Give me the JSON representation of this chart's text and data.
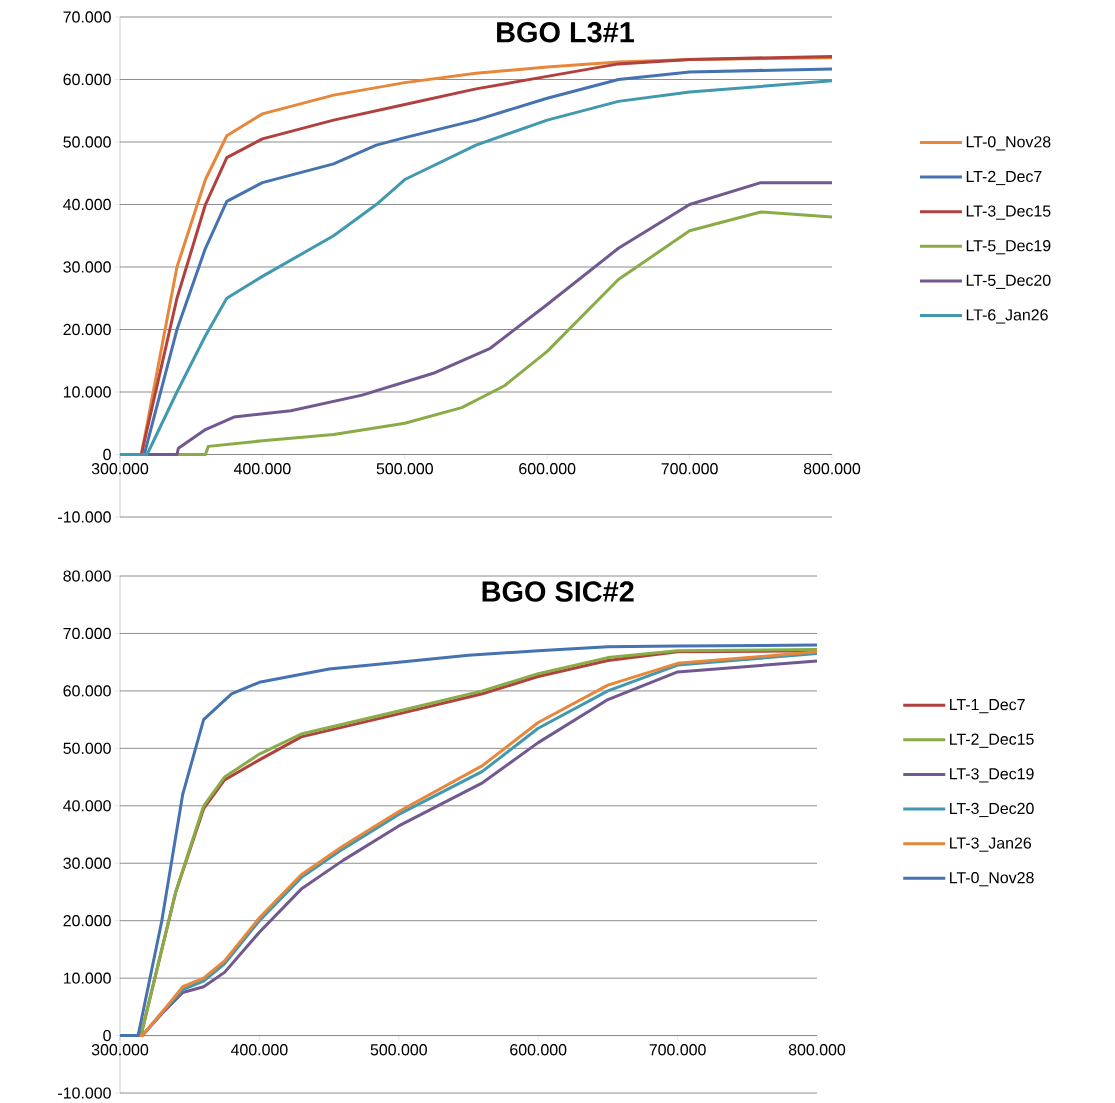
{
  "chart_data": [
    {
      "type": "line",
      "title": "BGO L3#1",
      "xlim": [
        300000,
        800000
      ],
      "ylim": [
        -10000,
        70000
      ],
      "xticks": [
        {
          "value": 300000,
          "label": "300.000"
        },
        {
          "value": 400000,
          "label": "400.000"
        },
        {
          "value": 500000,
          "label": "500.000"
        },
        {
          "value": 600000,
          "label": "600.000"
        },
        {
          "value": 700000,
          "label": "700.000"
        },
        {
          "value": 800000,
          "label": "800.000"
        }
      ],
      "yticks": [
        {
          "value": -10000,
          "label": "-10.000"
        },
        0,
        {
          "value": 10000,
          "label": "10.000"
        },
        {
          "value": 20000,
          "label": "20.000"
        },
        {
          "value": 30000,
          "label": "30.000"
        },
        {
          "value": 40000,
          "label": "40.000"
        },
        {
          "value": 50000,
          "label": "50.000"
        },
        {
          "value": 60000,
          "label": "60.000"
        },
        {
          "value": 70000,
          "label": "70.000"
        }
      ],
      "grid": "y",
      "legend": "right",
      "line_style": "solid",
      "series": [
        {
          "name": "LT-0_Nov28",
          "color": "#e8873a",
          "x": [
            300000,
            315000,
            340000,
            360000,
            375000,
            400000,
            450000,
            500000,
            550000,
            600000,
            650000,
            700000,
            800000
          ],
          "values": [
            0,
            0,
            30000,
            44000,
            51000,
            54500,
            57500,
            59500,
            61000,
            62000,
            62800,
            63200,
            63500
          ]
        },
        {
          "name": "LT-2_Dec7",
          "color": "#4572b0",
          "x": [
            300000,
            317000,
            340000,
            360000,
            375000,
            400000,
            450000,
            480000,
            500000,
            550000,
            600000,
            650000,
            700000,
            800000
          ],
          "values": [
            0,
            0,
            20000,
            33000,
            40500,
            43500,
            46500,
            49500,
            50700,
            53500,
            57000,
            60000,
            61200,
            61700
          ]
        },
        {
          "name": "LT-3_Dec15",
          "color": "#b0413e",
          "x": [
            300000,
            315000,
            340000,
            360000,
            375000,
            400000,
            450000,
            500000,
            550000,
            600000,
            650000,
            700000,
            800000
          ],
          "values": [
            0,
            0,
            25000,
            40000,
            47500,
            50500,
            53500,
            56000,
            58500,
            60500,
            62500,
            63200,
            63700
          ]
        },
        {
          "name": "LT-5_Dec19",
          "color": "#8aac46",
          "x": [
            300000,
            360000,
            362000,
            400000,
            450000,
            500000,
            540000,
            570000,
            600000,
            650000,
            700000,
            750000,
            800000
          ],
          "values": [
            0,
            0,
            1300,
            2200,
            3200,
            5000,
            7500,
            11000,
            16500,
            28000,
            35800,
            38800,
            38000
          ]
        },
        {
          "name": "LT-5_Dec20",
          "color": "#71588f",
          "x": [
            300000,
            340000,
            341000,
            360000,
            380000,
            420000,
            470000,
            520000,
            560000,
            600000,
            650000,
            700000,
            750000,
            800000
          ],
          "values": [
            0,
            0,
            1000,
            4000,
            6000,
            7000,
            9500,
            13000,
            17000,
            24000,
            33000,
            40000,
            43500,
            43500
          ]
        },
        {
          "name": "LT-6_Jan26",
          "color": "#4198af",
          "x": [
            300000,
            319000,
            340000,
            360000,
            375000,
            400000,
            450000,
            480000,
            500000,
            550000,
            600000,
            650000,
            700000,
            800000
          ],
          "values": [
            0,
            0,
            10000,
            19000,
            25000,
            28500,
            35000,
            40000,
            44000,
            49500,
            53500,
            56500,
            58000,
            59800
          ]
        }
      ]
    },
    {
      "type": "line",
      "title": "BGO SIC#2",
      "xlim": [
        300000,
        800000
      ],
      "ylim": [
        -10000,
        80000
      ],
      "xticks": [
        {
          "value": 300000,
          "label": "300.000"
        },
        {
          "value": 400000,
          "label": "400.000"
        },
        {
          "value": 500000,
          "label": "500.000"
        },
        {
          "value": 600000,
          "label": "600.000"
        },
        {
          "value": 700000,
          "label": "700.000"
        },
        {
          "value": 800000,
          "label": "800.000"
        }
      ],
      "yticks": [
        {
          "value": -10000,
          "label": "-10.000"
        },
        0,
        {
          "value": 10000,
          "label": "10.000"
        },
        {
          "value": 20000,
          "label": "20.000"
        },
        {
          "value": 30000,
          "label": "30.000"
        },
        {
          "value": 40000,
          "label": "40.000"
        },
        {
          "value": 50000,
          "label": "50.000"
        },
        {
          "value": 60000,
          "label": "60.000"
        },
        {
          "value": 70000,
          "label": "70.000"
        },
        {
          "value": 80000,
          "label": "80.000"
        }
      ],
      "grid": "y",
      "legend": "right",
      "line_style": "solid",
      "series": [
        {
          "name": "LT-1_Dec7",
          "color": "#b0413e",
          "x": [
            300000,
            315000,
            340000,
            360000,
            375000,
            400000,
            430000,
            500000,
            560000,
            600000,
            650000,
            700000,
            800000
          ],
          "values": [
            0,
            0,
            25000,
            39500,
            44500,
            48000,
            52000,
            56000,
            59500,
            62500,
            65300,
            66800,
            67000
          ]
        },
        {
          "name": "LT-2_Dec15",
          "color": "#8aac46",
          "x": [
            300000,
            315000,
            340000,
            360000,
            375000,
            400000,
            430000,
            500000,
            560000,
            600000,
            650000,
            700000,
            800000
          ],
          "values": [
            0,
            0,
            25000,
            40000,
            45000,
            49000,
            52500,
            56500,
            60000,
            63000,
            65800,
            67000,
            67200
          ]
        },
        {
          "name": "LT-3_Dec19",
          "color": "#71588f",
          "x": [
            300000,
            316000,
            330000,
            345000,
            360000,
            375000,
            400000,
            430000,
            460000,
            500000,
            560000,
            600000,
            650000,
            700000,
            800000
          ],
          "values": [
            0,
            0,
            3800,
            7500,
            8500,
            11000,
            18000,
            25500,
            30500,
            36500,
            44000,
            51000,
            58500,
            63300,
            65200
          ]
        },
        {
          "name": "LT-3_Dec20",
          "color": "#4198af",
          "x": [
            300000,
            316000,
            330000,
            345000,
            360000,
            375000,
            400000,
            430000,
            460000,
            500000,
            560000,
            600000,
            650000,
            700000,
            800000
          ],
          "values": [
            0,
            0,
            4000,
            8000,
            9500,
            12500,
            20000,
            27500,
            32500,
            38500,
            46000,
            53500,
            60000,
            64500,
            66500
          ]
        },
        {
          "name": "LT-3_Jan26",
          "color": "#e8873a",
          "x": [
            300000,
            316000,
            330000,
            345000,
            360000,
            375000,
            400000,
            430000,
            460000,
            500000,
            560000,
            600000,
            650000,
            700000,
            800000
          ],
          "values": [
            0,
            0,
            4000,
            8500,
            10000,
            13000,
            20500,
            28000,
            33000,
            39000,
            47000,
            54500,
            61000,
            64800,
            66800
          ]
        },
        {
          "name": "LT-0_Nov28",
          "color": "#4572b0",
          "x": [
            300000,
            313000,
            330000,
            345000,
            360000,
            380000,
            400000,
            450000,
            500000,
            550000,
            600000,
            650000,
            700000,
            800000
          ],
          "values": [
            0,
            0,
            20000,
            42000,
            55000,
            59500,
            61500,
            63800,
            65000,
            66200,
            67000,
            67700,
            67800,
            68000
          ]
        }
      ]
    }
  ]
}
